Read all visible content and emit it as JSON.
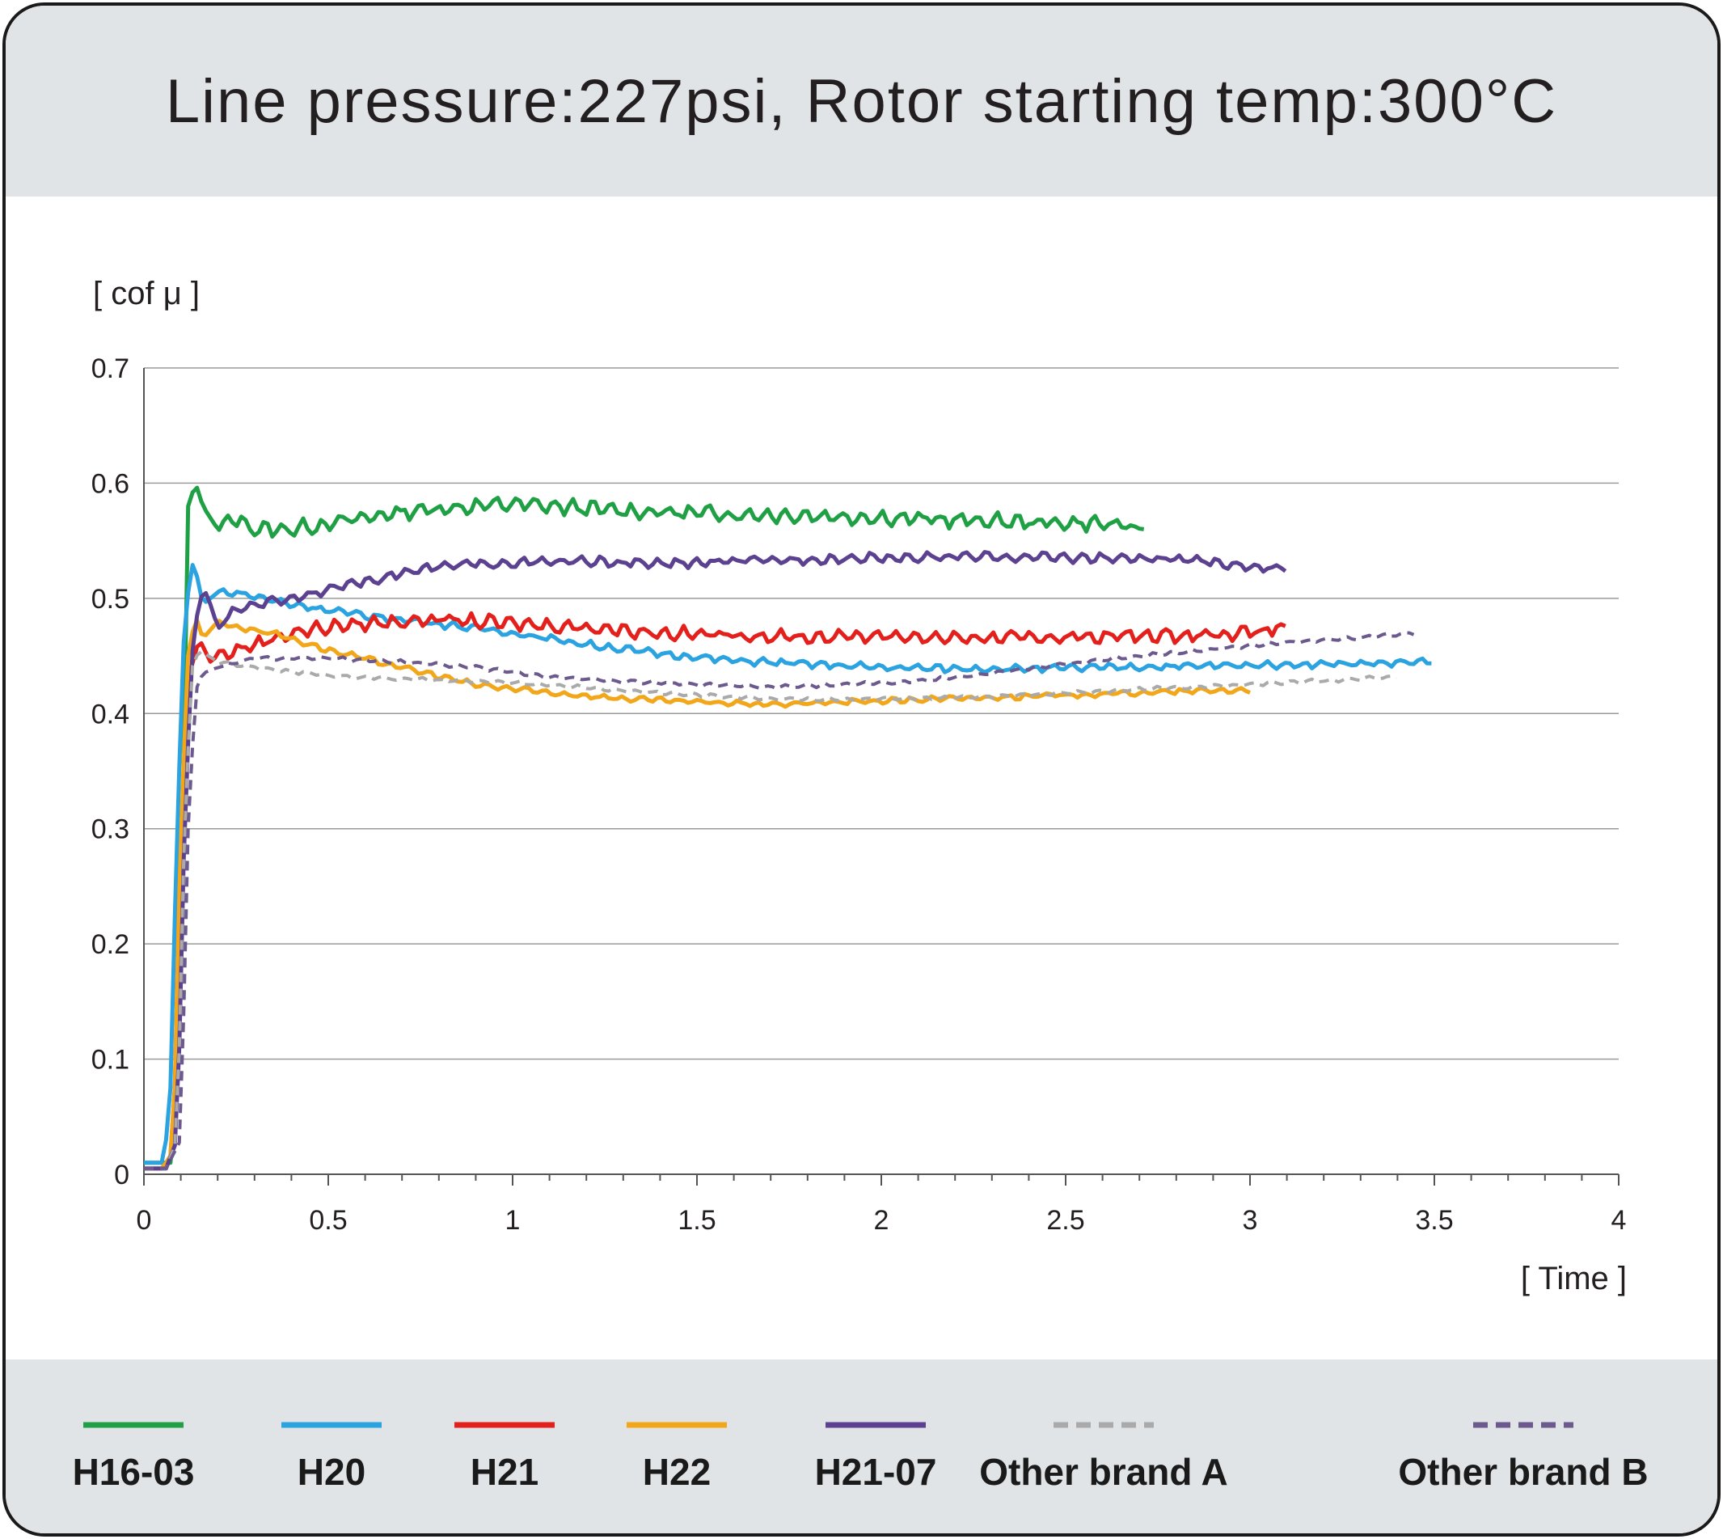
{
  "chart_data": {
    "type": "line",
    "title": "Line pressure:227psi, Rotor starting temp:300°C",
    "ylabel": "[ cof μ ]",
    "xlabel": "[ Time ]",
    "xlim": [
      0,
      4
    ],
    "ylim": [
      0,
      0.7
    ],
    "x_ticks": [
      "0",
      "0.5",
      "1",
      "1.5",
      "2",
      "2.5",
      "3",
      "3.5",
      "4"
    ],
    "y_ticks": [
      "0",
      "0.1",
      "0.2",
      "0.3",
      "0.4",
      "0.5",
      "0.6",
      "0.7"
    ],
    "grid": true,
    "legend_position": "bottom",
    "series": [
      {
        "name": "H16-03",
        "color": "#1fa045",
        "dash": false,
        "x": [
          0,
          0.05,
          0.08,
          0.1,
          0.11,
          0.12,
          0.14,
          0.16,
          0.2,
          0.25,
          0.3,
          0.4,
          0.5,
          0.6,
          0.7,
          0.8,
          0.9,
          1.0,
          1.1,
          1.2,
          1.3,
          1.4,
          1.5,
          1.6,
          1.8,
          2.0,
          2.2,
          2.4,
          2.6,
          2.7,
          2.72
        ],
        "y": [
          0.01,
          0.01,
          0.01,
          0.2,
          0.4,
          0.58,
          0.6,
          0.58,
          0.56,
          0.57,
          0.56,
          0.56,
          0.565,
          0.57,
          0.575,
          0.578,
          0.58,
          0.582,
          0.58,
          0.578,
          0.576,
          0.575,
          0.574,
          0.573,
          0.572,
          0.57,
          0.568,
          0.566,
          0.565,
          0.56,
          0.57
        ],
        "noise": 0.008
      },
      {
        "name": "H20",
        "color": "#2aa3e0",
        "dash": false,
        "x": [
          0,
          0.05,
          0.07,
          0.09,
          0.11,
          0.13,
          0.14,
          0.16,
          0.2,
          0.25,
          0.4,
          0.6,
          0.8,
          1.0,
          1.2,
          1.4,
          1.6,
          1.8,
          2.0,
          2.2,
          2.4,
          2.6,
          2.8,
          3.0,
          3.2,
          3.4,
          3.5
        ],
        "y": [
          0.01,
          0.01,
          0.05,
          0.3,
          0.48,
          0.53,
          0.525,
          0.495,
          0.505,
          0.505,
          0.495,
          0.485,
          0.478,
          0.47,
          0.46,
          0.452,
          0.446,
          0.443,
          0.44,
          0.439,
          0.439,
          0.44,
          0.441,
          0.442,
          0.443,
          0.444,
          0.445
        ],
        "noise": 0.004
      },
      {
        "name": "H21",
        "color": "#e3201b",
        "dash": false,
        "x": [
          0,
          0.05,
          0.08,
          0.1,
          0.12,
          0.15,
          0.18,
          0.2,
          0.3,
          0.4,
          0.5,
          0.6,
          0.7,
          0.8,
          0.9,
          1.0,
          1.2,
          1.4,
          1.6,
          1.8,
          2.0,
          2.2,
          2.4,
          2.6,
          2.8,
          3.0,
          3.1
        ],
        "y": [
          0.005,
          0.005,
          0.02,
          0.3,
          0.43,
          0.465,
          0.445,
          0.45,
          0.46,
          0.47,
          0.475,
          0.478,
          0.48,
          0.482,
          0.48,
          0.478,
          0.475,
          0.47,
          0.468,
          0.466,
          0.468,
          0.465,
          0.466,
          0.467,
          0.468,
          0.47,
          0.475
        ],
        "noise": 0.007
      },
      {
        "name": "H22",
        "color": "#f2a71b",
        "dash": false,
        "x": [
          0,
          0.05,
          0.08,
          0.1,
          0.12,
          0.14,
          0.16,
          0.2,
          0.25,
          0.35,
          0.5,
          0.7,
          0.9,
          1.1,
          1.3,
          1.5,
          1.7,
          1.9,
          2.1,
          2.3,
          2.5,
          2.7,
          2.9,
          3.0
        ],
        "y": [
          0.005,
          0.005,
          0.02,
          0.3,
          0.45,
          0.485,
          0.465,
          0.48,
          0.475,
          0.47,
          0.455,
          0.44,
          0.425,
          0.418,
          0.413,
          0.41,
          0.408,
          0.41,
          0.412,
          0.414,
          0.416,
          0.418,
          0.42,
          0.42
        ],
        "noise": 0.003
      },
      {
        "name": "H21-07",
        "color": "#5b4190",
        "dash": false,
        "x": [
          0,
          0.06,
          0.09,
          0.11,
          0.13,
          0.15,
          0.17,
          0.2,
          0.25,
          0.3,
          0.4,
          0.5,
          0.6,
          0.7,
          0.8,
          0.9,
          1.0,
          1.2,
          1.4,
          1.6,
          1.8,
          2.0,
          2.2,
          2.4,
          2.6,
          2.8,
          3.0,
          3.1
        ],
        "y": [
          0.005,
          0.005,
          0.03,
          0.3,
          0.45,
          0.5,
          0.505,
          0.475,
          0.49,
          0.495,
          0.5,
          0.508,
          0.515,
          0.522,
          0.527,
          0.53,
          0.531,
          0.532,
          0.53,
          0.532,
          0.534,
          0.535,
          0.536,
          0.536,
          0.535,
          0.534,
          0.528,
          0.525
        ],
        "noise": 0.005
      },
      {
        "name": "Other brand A",
        "color": "#aaaaaa",
        "dash": true,
        "x": [
          0,
          0.06,
          0.09,
          0.11,
          0.13,
          0.15,
          0.2,
          0.3,
          0.5,
          0.7,
          0.9,
          1.1,
          1.3,
          1.5,
          1.7,
          1.9,
          2.1,
          2.3,
          2.5,
          2.7,
          2.9,
          3.1,
          3.3,
          3.4
        ],
        "y": [
          0.005,
          0.005,
          0.03,
          0.3,
          0.44,
          0.455,
          0.445,
          0.44,
          0.433,
          0.43,
          0.428,
          0.425,
          0.42,
          0.416,
          0.413,
          0.412,
          0.413,
          0.415,
          0.418,
          0.421,
          0.424,
          0.427,
          0.43,
          0.432
        ],
        "noise": 0.002
      },
      {
        "name": "Other brand B",
        "color": "#6c5a8e",
        "dash": true,
        "x": [
          0,
          0.06,
          0.1,
          0.12,
          0.14,
          0.16,
          0.2,
          0.3,
          0.5,
          0.7,
          0.9,
          1.1,
          1.3,
          1.5,
          1.7,
          1.9,
          2.1,
          2.3,
          2.5,
          2.7,
          2.9,
          3.1,
          3.3,
          3.45
        ],
        "y": [
          0.005,
          0.005,
          0.03,
          0.3,
          0.42,
          0.435,
          0.44,
          0.448,
          0.448,
          0.445,
          0.44,
          0.432,
          0.428,
          0.425,
          0.423,
          0.425,
          0.428,
          0.435,
          0.443,
          0.45,
          0.456,
          0.462,
          0.466,
          0.47
        ],
        "noise": 0.002
      }
    ]
  }
}
